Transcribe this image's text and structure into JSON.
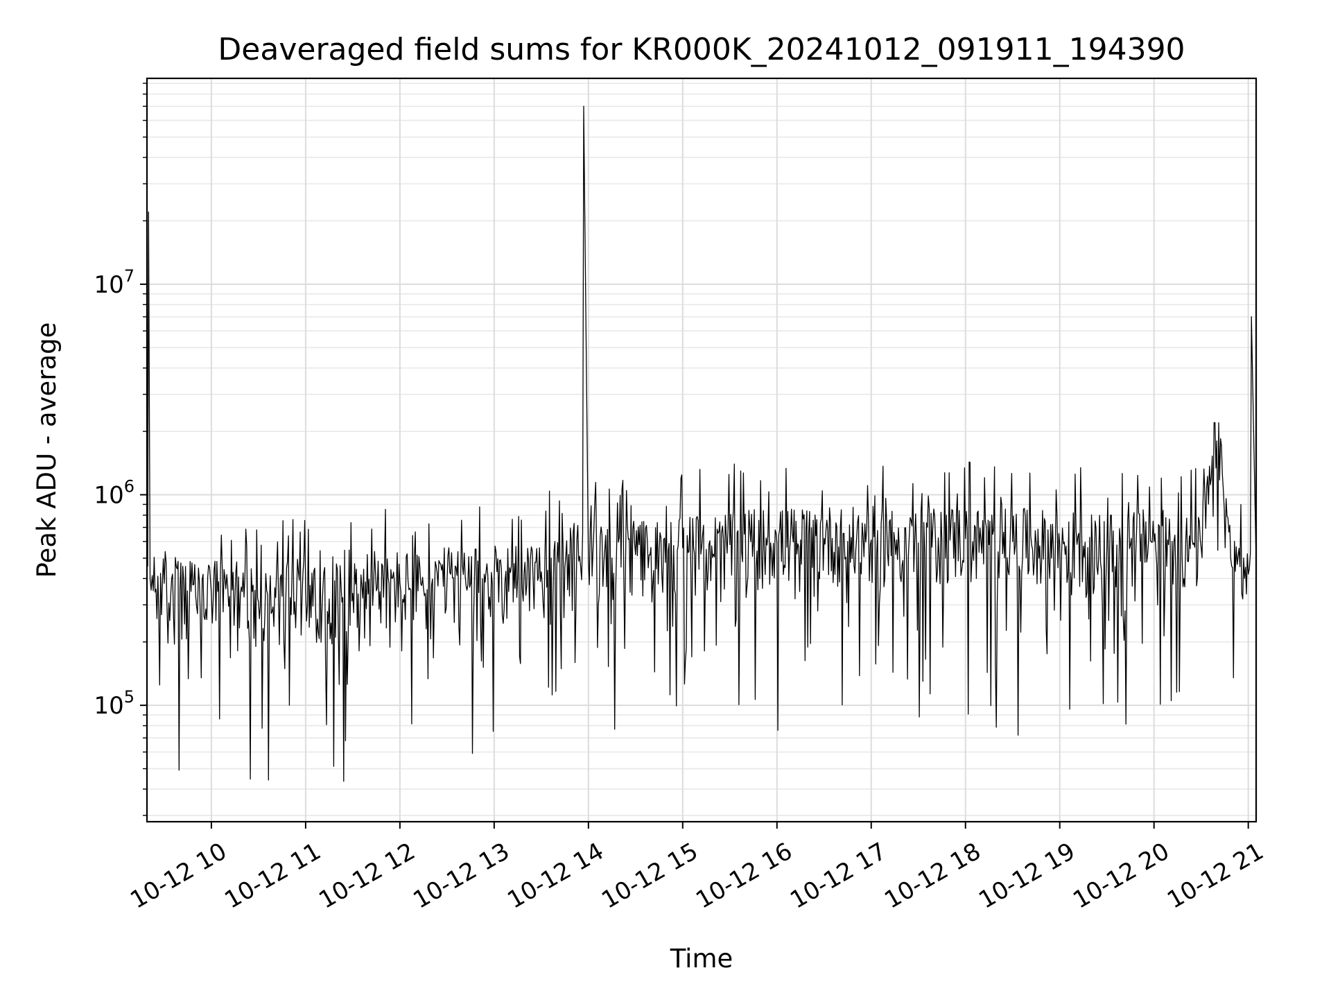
{
  "chart_data": {
    "type": "line",
    "title": "Deaveraged field sums for KR000K_20241012_091911_194390",
    "xlabel": "Time",
    "ylabel": "Peak ADU - average",
    "yscale": "log",
    "ylim": [
      28000,
      95000000
    ],
    "xlim": [
      "2024-10-12 09:19",
      "2024-10-12 21:05"
    ],
    "grid": {
      "major": true,
      "minor": true
    },
    "x_ticks": [
      "10-12 10",
      "10-12 11",
      "10-12 12",
      "10-12 13",
      "10-12 14",
      "10-12 15",
      "10-12 16",
      "10-12 17",
      "10-12 18",
      "10-12 19",
      "10-12 20",
      "10-12 21"
    ],
    "y_ticks": [
      {
        "base": "10",
        "exp": "5",
        "value": 100000
      },
      {
        "base": "10",
        "exp": "6",
        "value": 1000000
      },
      {
        "base": "10",
        "exp": "7",
        "value": 10000000
      }
    ],
    "series": [
      {
        "color": "#000000",
        "x": [
          "2024-10-12 09:19",
          "2024-10-12 09:20",
          "2024-10-12 09:21",
          "2024-10-12 09:23",
          "2024-10-12 09:30",
          "2024-10-12 09:40",
          "2024-10-12 09:50",
          "2024-10-12 10:00",
          "2024-10-12 10:15",
          "2024-10-12 10:30",
          "2024-10-12 10:45",
          "2024-10-12 11:00",
          "2024-10-12 11:15",
          "2024-10-12 11:30",
          "2024-10-12 11:45",
          "2024-10-12 12:00",
          "2024-10-12 12:15",
          "2024-10-12 12:30",
          "2024-10-12 12:45",
          "2024-10-12 13:00",
          "2024-10-12 13:15",
          "2024-10-12 13:30",
          "2024-10-12 13:45",
          "2024-10-12 13:55",
          "2024-10-12 13:57",
          "2024-10-12 14:00",
          "2024-10-12 14:15",
          "2024-10-12 14:30",
          "2024-10-12 14:45",
          "2024-10-12 15:00",
          "2024-10-12 15:15",
          "2024-10-12 15:30",
          "2024-10-12 15:45",
          "2024-10-12 16:00",
          "2024-10-12 16:15",
          "2024-10-12 16:30",
          "2024-10-12 16:45",
          "2024-10-12 17:00",
          "2024-10-12 17:15",
          "2024-10-12 17:30",
          "2024-10-12 17:45",
          "2024-10-12 18:00",
          "2024-10-12 18:15",
          "2024-10-12 18:30",
          "2024-10-12 18:45",
          "2024-10-12 19:00",
          "2024-10-12 19:15",
          "2024-10-12 19:30",
          "2024-10-12 19:45",
          "2024-10-12 20:00",
          "2024-10-12 20:15",
          "2024-10-12 20:30",
          "2024-10-12 20:40",
          "2024-10-12 20:50",
          "2024-10-12 21:00",
          "2024-10-12 21:02",
          "2024-10-12 21:05"
        ],
        "y": [
          500000,
          22000000,
          400000,
          350000,
          380000,
          360000,
          330000,
          340000,
          320000,
          310000,
          330000,
          350000,
          320000,
          340000,
          350000,
          380000,
          360000,
          390000,
          380000,
          400000,
          410000,
          430000,
          450000,
          460000,
          70000000,
          480000,
          500000,
          520000,
          540000,
          560000,
          550000,
          580000,
          600000,
          590000,
          610000,
          620000,
          600000,
          610000,
          600000,
          590000,
          610000,
          620000,
          580000,
          600000,
          590000,
          580000,
          570000,
          560000,
          580000,
          600000,
          560000,
          560000,
          1800000,
          450000,
          420000,
          7000000,
          480000
        ]
      }
    ]
  }
}
